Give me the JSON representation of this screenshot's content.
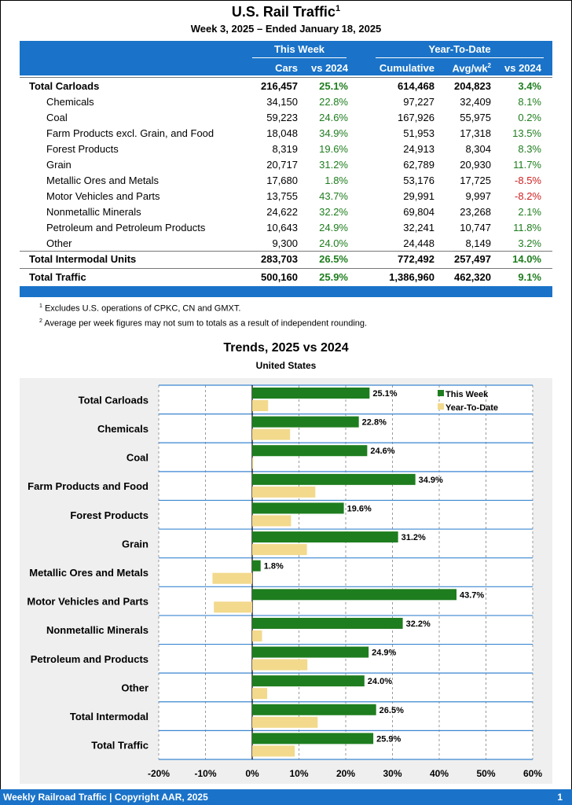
{
  "header": {
    "title": "U.S. Rail Traffic",
    "title_sup": "1",
    "subtitle": "Week 3, 2025 – Ended January 18, 2025"
  },
  "table": {
    "group_this_week": "This Week",
    "group_ytd": "Year-To-Date",
    "col_cars": "Cars",
    "col_vs2024": "vs 2024",
    "col_cumulative": "Cumulative",
    "col_avgwk": "Avg/wk",
    "col_avgwk_sup": "2",
    "col_ytd_vs2024": "vs 2024",
    "rows": [
      {
        "label": "Total Carloads",
        "cars": "216,457",
        "pct": "25.1%",
        "cum": "614,468",
        "avg": "204,823",
        "ytd": "3.4%",
        "kind": "total"
      },
      {
        "label": "Chemicals",
        "cars": "34,150",
        "pct": "22.8%",
        "cum": "97,227",
        "avg": "32,409",
        "ytd": "8.1%",
        "kind": "sub"
      },
      {
        "label": "Coal",
        "cars": "59,223",
        "pct": "24.6%",
        "cum": "167,926",
        "avg": "55,975",
        "ytd": "0.2%",
        "kind": "sub"
      },
      {
        "label": "Farm Products excl. Grain, and Food",
        "cars": "18,048",
        "pct": "34.9%",
        "cum": "51,953",
        "avg": "17,318",
        "ytd": "13.5%",
        "kind": "sub"
      },
      {
        "label": "Forest Products",
        "cars": "8,319",
        "pct": "19.6%",
        "cum": "24,913",
        "avg": "8,304",
        "ytd": "8.3%",
        "kind": "sub"
      },
      {
        "label": "Grain",
        "cars": "20,717",
        "pct": "31.2%",
        "cum": "62,789",
        "avg": "20,930",
        "ytd": "11.7%",
        "kind": "sub"
      },
      {
        "label": "Metallic Ores and Metals",
        "cars": "17,680",
        "pct": "1.8%",
        "cum": "53,176",
        "avg": "17,725",
        "ytd": "-8.5%",
        "kind": "sub"
      },
      {
        "label": "Motor Vehicles and Parts",
        "cars": "13,755",
        "pct": "43.7%",
        "cum": "29,991",
        "avg": "9,997",
        "ytd": "-8.2%",
        "kind": "sub"
      },
      {
        "label": "Nonmetallic Minerals",
        "cars": "24,622",
        "pct": "32.2%",
        "cum": "69,804",
        "avg": "23,268",
        "ytd": "2.1%",
        "kind": "sub"
      },
      {
        "label": "Petroleum and Petroleum Products",
        "cars": "10,643",
        "pct": "24.9%",
        "cum": "32,241",
        "avg": "10,747",
        "ytd": "11.8%",
        "kind": "sub"
      },
      {
        "label": "Other",
        "cars": "9,300",
        "pct": "24.0%",
        "cum": "24,448",
        "avg": "8,149",
        "ytd": "3.2%",
        "kind": "sub"
      },
      {
        "label": "Total Intermodal Units",
        "cars": "283,703",
        "pct": "26.5%",
        "cum": "772,492",
        "avg": "257,497",
        "ytd": "14.0%",
        "kind": "total"
      },
      {
        "label": "Total Traffic",
        "cars": "500,160",
        "pct": "25.9%",
        "cum": "1,386,960",
        "avg": "462,320",
        "ytd": "9.1%",
        "kind": "total"
      }
    ]
  },
  "notes": [
    {
      "num": "1",
      "text": "Excludes U.S. operations of CPKC, CN and GMXT."
    },
    {
      "num": "2",
      "text": "Average per week figures may not sum to totals as a result of independent rounding."
    }
  ],
  "footer": {
    "text": "Weekly Railroad Traffic | Copyright AAR, 2025",
    "page": "1"
  },
  "colors": {
    "header_blue": "#1a73c8",
    "this_week": "#1e7d1e",
    "ytd": "#f2d98c",
    "positive": "#1e7d1e",
    "negative": "#d02020"
  },
  "chart_data": {
    "type": "bar",
    "orientation": "horizontal",
    "title": "Trends, 2025 vs 2024",
    "subtitle": "United States",
    "categories": [
      "Total Carloads",
      "Chemicals",
      "Coal",
      "Farm Products and Food",
      "Forest Products",
      "Grain",
      "Metallic Ores and Metals",
      "Motor Vehicles and Parts",
      "Nonmetallic Minerals",
      "Petroleum and Products",
      "Other",
      "Total Intermodal",
      "Total Traffic"
    ],
    "series": [
      {
        "name": "This Week",
        "values": [
          25.1,
          22.8,
          24.6,
          34.9,
          19.6,
          31.2,
          1.8,
          43.7,
          32.2,
          24.9,
          24.0,
          26.5,
          25.9
        ],
        "labels": [
          "25.1%",
          "22.8%",
          "24.6%",
          "34.9%",
          "19.6%",
          "31.2%",
          "1.8%",
          "43.7%",
          "32.2%",
          "24.9%",
          "24.0%",
          "26.5%",
          "25.9%"
        ]
      },
      {
        "name": "Year-To-Date",
        "values": [
          3.4,
          8.1,
          0.2,
          13.5,
          8.3,
          11.7,
          -8.5,
          -8.2,
          2.1,
          11.8,
          3.2,
          14.0,
          9.1
        ]
      }
    ],
    "xlim": [
      -20,
      60
    ],
    "xticks": [
      -20,
      -10,
      0,
      10,
      20,
      30,
      40,
      50,
      60
    ],
    "xtick_labels": [
      "-20%",
      "-10%",
      "0%",
      "10%",
      "20%",
      "30%",
      "40%",
      "50%",
      "60%"
    ],
    "grid": true,
    "legend_position": "top-right"
  }
}
